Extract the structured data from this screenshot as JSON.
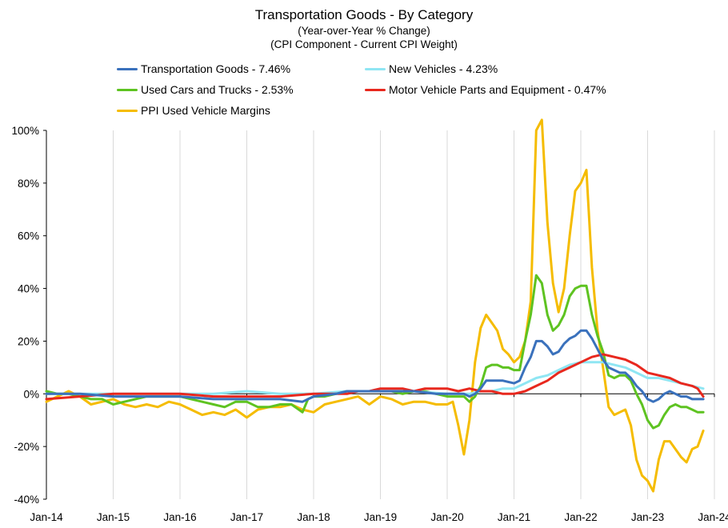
{
  "chart_data": {
    "type": "line",
    "title": "Transportation Goods - By Category",
    "subtitle_1": "(Year-over-Year % Change)",
    "subtitle_2": "(CPI Component - Current CPI Weight)",
    "xlabel": "",
    "ylabel": "",
    "ylim": [
      -40,
      100
    ],
    "yticks": [
      -40,
      -20,
      0,
      20,
      40,
      60,
      80,
      100
    ],
    "ytick_labels": [
      "-40%",
      "-20%",
      "0%",
      "20%",
      "40%",
      "60%",
      "80%",
      "100%"
    ],
    "xlim": [
      0,
      120
    ],
    "xticks": [
      0,
      12,
      24,
      36,
      48,
      60,
      72,
      84,
      96,
      108,
      120
    ],
    "xtick_labels": [
      "Jan-14",
      "Jan-15",
      "Jan-16",
      "Jan-17",
      "Jan-18",
      "Jan-19",
      "Jan-20",
      "Jan-21",
      "Jan-22",
      "Jan-23",
      "Jan-24"
    ],
    "x_unit": "months since Jan-2014",
    "grid": "vertical gridlines at x ticks",
    "series": [
      {
        "name": "PPI Used Vehicle Margins",
        "legend_label": "PPI Used Vehicle Margins",
        "color": "#f5bc00",
        "points": [
          [
            0,
            -3
          ],
          [
            2,
            -1
          ],
          [
            4,
            1
          ],
          [
            6,
            -1
          ],
          [
            8,
            -4
          ],
          [
            10,
            -3
          ],
          [
            12,
            -2
          ],
          [
            14,
            -4
          ],
          [
            16,
            -5
          ],
          [
            18,
            -4
          ],
          [
            20,
            -5
          ],
          [
            22,
            -3
          ],
          [
            24,
            -4
          ],
          [
            26,
            -6
          ],
          [
            28,
            -8
          ],
          [
            30,
            -7
          ],
          [
            32,
            -8
          ],
          [
            34,
            -6
          ],
          [
            36,
            -9
          ],
          [
            38,
            -6
          ],
          [
            40,
            -5
          ],
          [
            42,
            -5
          ],
          [
            44,
            -4
          ],
          [
            46,
            -6
          ],
          [
            48,
            -7
          ],
          [
            50,
            -4
          ],
          [
            52,
            -3
          ],
          [
            54,
            -2
          ],
          [
            56,
            -1
          ],
          [
            58,
            -4
          ],
          [
            60,
            -1
          ],
          [
            62,
            -2
          ],
          [
            64,
            -4
          ],
          [
            66,
            -3
          ],
          [
            68,
            -3
          ],
          [
            70,
            -4
          ],
          [
            72,
            -4
          ],
          [
            73,
            -3
          ],
          [
            74,
            -12
          ],
          [
            75,
            -23
          ],
          [
            76,
            -10
          ],
          [
            77,
            12
          ],
          [
            78,
            25
          ],
          [
            79,
            30
          ],
          [
            80,
            27
          ],
          [
            81,
            24
          ],
          [
            82,
            17
          ],
          [
            83,
            15
          ],
          [
            84,
            12
          ],
          [
            85,
            14
          ],
          [
            86,
            20
          ],
          [
            87,
            35
          ],
          [
            88,
            100
          ],
          [
            89,
            104
          ],
          [
            90,
            65
          ],
          [
            91,
            42
          ],
          [
            92,
            31
          ],
          [
            93,
            40
          ],
          [
            94,
            60
          ],
          [
            95,
            77
          ],
          [
            96,
            80
          ],
          [
            97,
            85
          ],
          [
            98,
            48
          ],
          [
            99,
            24
          ],
          [
            100,
            10
          ],
          [
            101,
            -5
          ],
          [
            102,
            -8
          ],
          [
            103,
            -7
          ],
          [
            104,
            -6
          ],
          [
            105,
            -12
          ],
          [
            106,
            -25
          ],
          [
            107,
            -31
          ],
          [
            108,
            -33
          ],
          [
            109,
            -37
          ],
          [
            110,
            -25
          ],
          [
            111,
            -18
          ],
          [
            112,
            -18
          ],
          [
            113,
            -21
          ],
          [
            114,
            -24
          ],
          [
            115,
            -26
          ],
          [
            116,
            -21
          ],
          [
            117,
            -20
          ],
          [
            118,
            -14
          ]
        ]
      },
      {
        "name": "Used Cars and Trucks - 2.53%",
        "legend_label": "Used Cars and Trucks - 2.53%",
        "color": "#5ec321",
        "points": [
          [
            0,
            1
          ],
          [
            2,
            0
          ],
          [
            4,
            0
          ],
          [
            6,
            -1
          ],
          [
            8,
            -2
          ],
          [
            10,
            -2
          ],
          [
            12,
            -4
          ],
          [
            14,
            -3
          ],
          [
            16,
            -2
          ],
          [
            18,
            -1
          ],
          [
            20,
            -1
          ],
          [
            22,
            -1
          ],
          [
            24,
            -1
          ],
          [
            26,
            -2
          ],
          [
            28,
            -3
          ],
          [
            30,
            -4
          ],
          [
            32,
            -5
          ],
          [
            34,
            -3
          ],
          [
            36,
            -3
          ],
          [
            38,
            -5
          ],
          [
            40,
            -5
          ],
          [
            42,
            -4
          ],
          [
            44,
            -4
          ],
          [
            46,
            -7
          ],
          [
            47,
            -2
          ],
          [
            48,
            -1
          ],
          [
            50,
            -1
          ],
          [
            52,
            0
          ],
          [
            54,
            1
          ],
          [
            56,
            1
          ],
          [
            58,
            1
          ],
          [
            60,
            1
          ],
          [
            62,
            1
          ],
          [
            64,
            0
          ],
          [
            66,
            1
          ],
          [
            68,
            1
          ],
          [
            70,
            0
          ],
          [
            72,
            -1
          ],
          [
            74,
            -1
          ],
          [
            75,
            -1
          ],
          [
            76,
            -3
          ],
          [
            77,
            -1
          ],
          [
            78,
            3
          ],
          [
            79,
            10
          ],
          [
            80,
            11
          ],
          [
            81,
            11
          ],
          [
            82,
            10
          ],
          [
            83,
            10
          ],
          [
            84,
            9
          ],
          [
            85,
            9
          ],
          [
            86,
            20
          ],
          [
            87,
            30
          ],
          [
            88,
            45
          ],
          [
            89,
            42
          ],
          [
            90,
            30
          ],
          [
            91,
            24
          ],
          [
            92,
            26
          ],
          [
            93,
            30
          ],
          [
            94,
            37
          ],
          [
            95,
            40
          ],
          [
            96,
            41
          ],
          [
            97,
            41
          ],
          [
            98,
            30
          ],
          [
            99,
            22
          ],
          [
            100,
            16
          ],
          [
            101,
            7
          ],
          [
            102,
            6
          ],
          [
            103,
            7
          ],
          [
            104,
            7
          ],
          [
            105,
            5
          ],
          [
            106,
            0
          ],
          [
            107,
            -4
          ],
          [
            108,
            -10
          ],
          [
            109,
            -13
          ],
          [
            110,
            -12
          ],
          [
            111,
            -8
          ],
          [
            112,
            -5
          ],
          [
            113,
            -4
          ],
          [
            114,
            -5
          ],
          [
            115,
            -5
          ],
          [
            116,
            -6
          ],
          [
            117,
            -7
          ],
          [
            118,
            -7
          ]
        ]
      },
      {
        "name": "New Vehicles - 4.23%",
        "legend_label": "New Vehicles - 4.23%",
        "color": "#8fe6f3",
        "points": [
          [
            0,
            0
          ],
          [
            6,
            0
          ],
          [
            12,
            0
          ],
          [
            18,
            0
          ],
          [
            24,
            0
          ],
          [
            30,
            0
          ],
          [
            36,
            1
          ],
          [
            42,
            0
          ],
          [
            48,
            0
          ],
          [
            54,
            1
          ],
          [
            60,
            1
          ],
          [
            66,
            1
          ],
          [
            72,
            0
          ],
          [
            76,
            0
          ],
          [
            78,
            1
          ],
          [
            80,
            1
          ],
          [
            82,
            2
          ],
          [
            84,
            2
          ],
          [
            86,
            4
          ],
          [
            88,
            6
          ],
          [
            90,
            7
          ],
          [
            92,
            9
          ],
          [
            94,
            11
          ],
          [
            96,
            12
          ],
          [
            98,
            12
          ],
          [
            100,
            12
          ],
          [
            102,
            11
          ],
          [
            104,
            10
          ],
          [
            106,
            8
          ],
          [
            108,
            6
          ],
          [
            110,
            6
          ],
          [
            112,
            5
          ],
          [
            114,
            4
          ],
          [
            116,
            3
          ],
          [
            118,
            2
          ]
        ]
      },
      {
        "name": "Motor Vehicle Parts and Equipment - 0.47%",
        "legend_label": "Motor Vehicle Parts and Equipment - 0.47%",
        "color": "#e8281e",
        "points": [
          [
            0,
            -2
          ],
          [
            6,
            -1
          ],
          [
            12,
            0
          ],
          [
            18,
            0
          ],
          [
            24,
            0
          ],
          [
            30,
            -1
          ],
          [
            36,
            -1
          ],
          [
            42,
            -1
          ],
          [
            48,
            0
          ],
          [
            54,
            0
          ],
          [
            56,
            1
          ],
          [
            58,
            1
          ],
          [
            60,
            2
          ],
          [
            64,
            2
          ],
          [
            66,
            1
          ],
          [
            68,
            2
          ],
          [
            70,
            2
          ],
          [
            72,
            2
          ],
          [
            74,
            1
          ],
          [
            76,
            2
          ],
          [
            78,
            1
          ],
          [
            80,
            1
          ],
          [
            82,
            0
          ],
          [
            84,
            0
          ],
          [
            86,
            1
          ],
          [
            88,
            3
          ],
          [
            90,
            5
          ],
          [
            92,
            8
          ],
          [
            94,
            10
          ],
          [
            96,
            12
          ],
          [
            98,
            14
          ],
          [
            100,
            15
          ],
          [
            102,
            14
          ],
          [
            104,
            13
          ],
          [
            106,
            11
          ],
          [
            108,
            8
          ],
          [
            110,
            7
          ],
          [
            112,
            6
          ],
          [
            114,
            4
          ],
          [
            116,
            3
          ],
          [
            117,
            2
          ],
          [
            118,
            -1
          ]
        ]
      },
      {
        "name": "Transportation Goods - 7.46%",
        "legend_label": "Transportation Goods - 7.46%",
        "color": "#3a71bc",
        "points": [
          [
            0,
            0
          ],
          [
            6,
            0
          ],
          [
            12,
            -1
          ],
          [
            18,
            -1
          ],
          [
            24,
            -1
          ],
          [
            30,
            -2
          ],
          [
            36,
            -2
          ],
          [
            42,
            -2
          ],
          [
            46,
            -3
          ],
          [
            48,
            -1
          ],
          [
            52,
            0
          ],
          [
            54,
            1
          ],
          [
            56,
            1
          ],
          [
            60,
            1
          ],
          [
            64,
            1
          ],
          [
            66,
            1
          ],
          [
            70,
            0
          ],
          [
            72,
            0
          ],
          [
            74,
            0
          ],
          [
            75,
            0
          ],
          [
            76,
            -1
          ],
          [
            77,
            0
          ],
          [
            78,
            2
          ],
          [
            79,
            5
          ],
          [
            80,
            5
          ],
          [
            82,
            5
          ],
          [
            84,
            4
          ],
          [
            85,
            5
          ],
          [
            86,
            10
          ],
          [
            87,
            14
          ],
          [
            88,
            20
          ],
          [
            89,
            20
          ],
          [
            90,
            18
          ],
          [
            91,
            15
          ],
          [
            92,
            16
          ],
          [
            93,
            19
          ],
          [
            94,
            21
          ],
          [
            95,
            22
          ],
          [
            96,
            24
          ],
          [
            97,
            24
          ],
          [
            98,
            21
          ],
          [
            99,
            17
          ],
          [
            100,
            13
          ],
          [
            101,
            10
          ],
          [
            102,
            9
          ],
          [
            103,
            8
          ],
          [
            104,
            8
          ],
          [
            105,
            6
          ],
          [
            106,
            3
          ],
          [
            107,
            1
          ],
          [
            108,
            -2
          ],
          [
            109,
            -3
          ],
          [
            110,
            -2
          ],
          [
            111,
            0
          ],
          [
            112,
            1
          ],
          [
            113,
            0
          ],
          [
            114,
            -1
          ],
          [
            115,
            -1
          ],
          [
            116,
            -2
          ],
          [
            117,
            -2
          ],
          [
            118,
            -2
          ]
        ]
      }
    ]
  }
}
